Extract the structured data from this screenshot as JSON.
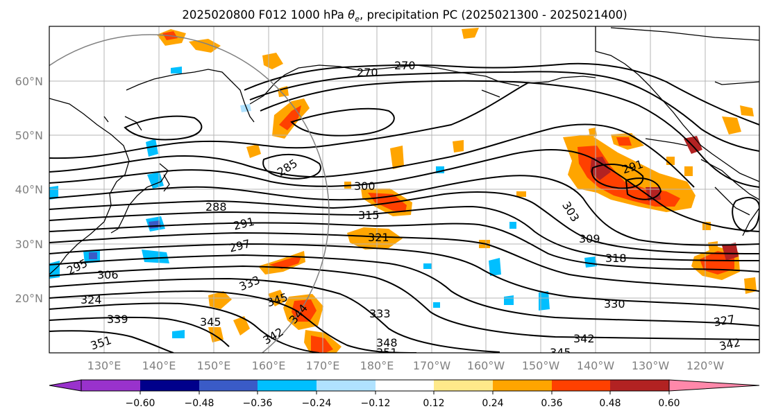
{
  "figure": {
    "title_prefix": "2025020800 F012 1000 hPa ",
    "title_theta": "θ",
    "title_sub": "e",
    "title_suffix": ", precipitation PC (2025021300 - 2025021400)"
  },
  "map": {
    "lat_labels": [
      "60°N",
      "50°N",
      "40°N",
      "30°N",
      "20°N"
    ],
    "lon_labels": [
      "130°E",
      "140°E",
      "150°E",
      "160°E",
      "170°E",
      "180°E",
      "170°W",
      "160°W",
      "150°W",
      "140°W",
      "130°W",
      "120°W"
    ],
    "contour_labels": [
      "270",
      "270",
      "285",
      "288",
      "291",
      "297",
      "300",
      "315",
      "321",
      "306",
      "295",
      "324",
      "339",
      "333",
      "345",
      "345",
      "344",
      "342",
      "351",
      "333",
      "348",
      "351",
      "345",
      "342",
      "330",
      "318",
      "309",
      "303",
      "291",
      "327",
      "342"
    ]
  },
  "colorbar": {
    "tick_labels": [
      "−0.60",
      "−0.48",
      "−0.36",
      "−0.24",
      "−0.12",
      "0.12",
      "0.24",
      "0.36",
      "0.48",
      "0.60"
    ],
    "colors": [
      "#9932cc",
      "#00008b",
      "#3a5bc7",
      "#00bfff",
      "#b0e2ff",
      "#ffffff",
      "#ffe98a",
      "#ffa500",
      "#ff4000",
      "#b22222",
      "#ff88aa"
    ]
  }
}
